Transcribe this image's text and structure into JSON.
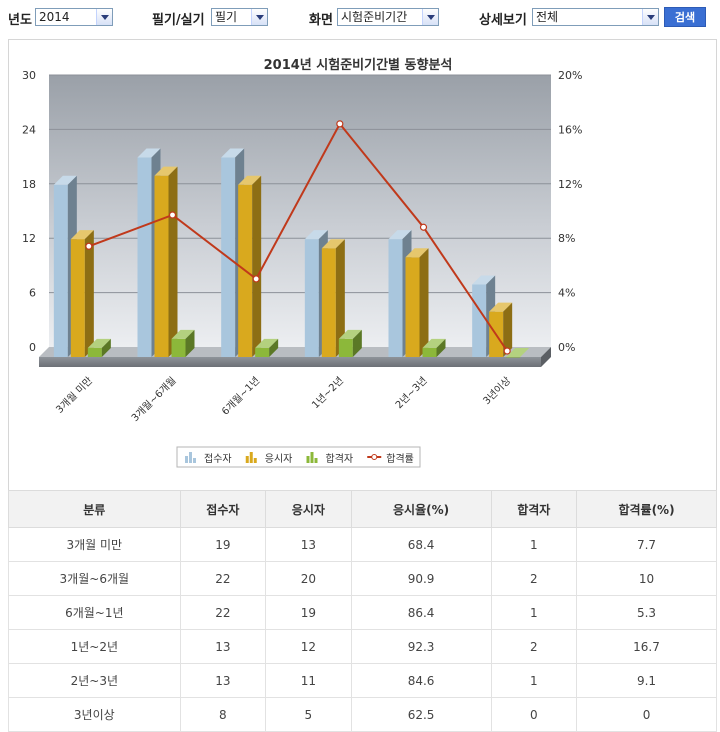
{
  "filters": {
    "year_label": "년도",
    "year_value": "2014",
    "exam_type_label": "필기/실기",
    "exam_type_value": "필기",
    "view_label": "화면",
    "view_value": "시험준비기간",
    "detail_label": "상세보기",
    "detail_value": "전체",
    "search_label": "검색"
  },
  "chart_data": {
    "type": "bar",
    "title": "2014년 시험준비기간별 동향분석",
    "categories": [
      "3개월 미만",
      "3개월~6개월",
      "6개월~1년",
      "1년~2년",
      "2년~3년",
      "3년이상"
    ],
    "series": [
      {
        "name": "접수자",
        "values": [
          19,
          22,
          22,
          13,
          13,
          8
        ],
        "color": "#a9c6dd"
      },
      {
        "name": "응시자",
        "values": [
          13,
          20,
          19,
          12,
          11,
          5
        ],
        "color": "#d9a91e"
      },
      {
        "name": "합격자",
        "values": [
          1,
          2,
          1,
          2,
          1,
          0
        ],
        "color": "#8cb83a"
      },
      {
        "name": "합격률",
        "type": "line",
        "axis": "right",
        "values": [
          7.7,
          10,
          5.3,
          16.7,
          9.1,
          0
        ],
        "color": "#c0391b"
      }
    ],
    "y_left": {
      "min": 0,
      "max": 30,
      "ticks": [
        "0",
        "6",
        "12",
        "18",
        "24",
        "30"
      ]
    },
    "y_right": {
      "min": 0,
      "max": 20,
      "ticks": [
        "0%",
        "4%",
        "8%",
        "12%",
        "16%",
        "20%"
      ]
    },
    "grid": true,
    "legend_position": "bottom"
  },
  "table": {
    "headers": [
      "분류",
      "접수자",
      "응시자",
      "응시율(%)",
      "합격자",
      "합격률(%)"
    ],
    "rows": [
      [
        "3개월 미만",
        "19",
        "13",
        "68.4",
        "1",
        "7.7"
      ],
      [
        "3개월~6개월",
        "22",
        "20",
        "90.9",
        "2",
        "10"
      ],
      [
        "6개월~1년",
        "22",
        "19",
        "86.4",
        "1",
        "5.3"
      ],
      [
        "1년~2년",
        "13",
        "12",
        "92.3",
        "2",
        "16.7"
      ],
      [
        "2년~3년",
        "13",
        "11",
        "84.6",
        "1",
        "9.1"
      ],
      [
        "3년이상",
        "8",
        "5",
        "62.5",
        "0",
        "0"
      ]
    ]
  }
}
